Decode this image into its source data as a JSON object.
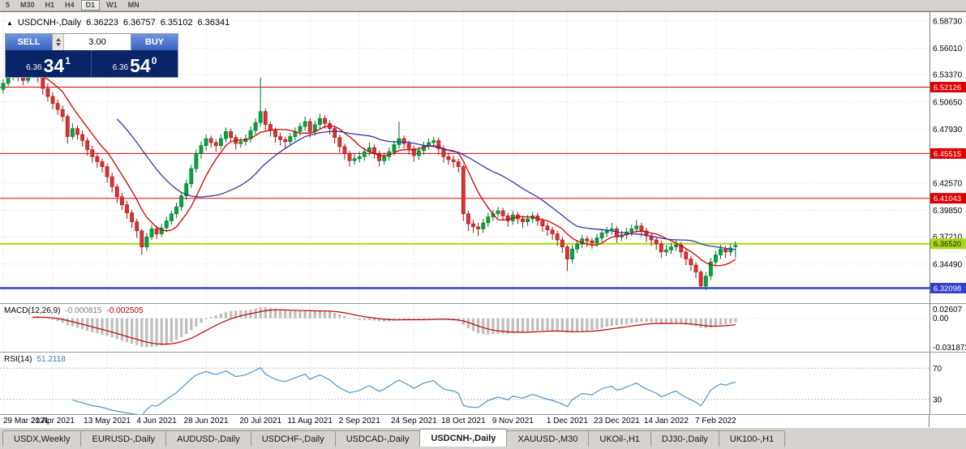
{
  "toolbar": {
    "timeframes": [
      "5",
      "M30",
      "H1",
      "H4",
      "D1",
      "W1",
      "MN"
    ],
    "active": "D1"
  },
  "symbol_info": {
    "toggle": "▲",
    "symbol": "USDCNH-,Daily",
    "open": "6.36223",
    "high": "6.36757",
    "low": "6.35102",
    "close": "6.36341"
  },
  "trade_panel": {
    "sell_label": "SELL",
    "buy_label": "BUY",
    "volume": "3.00",
    "sell_price": {
      "prefix": "6.36",
      "big": "34",
      "sup": "1"
    },
    "buy_price": {
      "prefix": "6.36",
      "big": "54",
      "sup": "0"
    }
  },
  "chart_data": {
    "type": "candlestick",
    "title": "USDCNH-,Daily",
    "ylim": [
      6.306,
      6.596
    ],
    "grid": true,
    "y_axis_labels": [
      "6.58730",
      "6.56010",
      "6.53370",
      "6.50650",
      "6.47930",
      "6.42570",
      "6.39850",
      "6.37210",
      "6.34490"
    ],
    "x_labels": [
      "29 Mar 2021",
      "21 Apr 2021",
      "13 May 2021",
      "4 Jun 2021",
      "28 Jun 2021",
      "20 Jul 2021",
      "11 Aug 2021",
      "2 Sep 2021",
      "24 Sep 2021",
      "18 Oct 2021",
      "9 Nov 2021",
      "1 Dec 2021",
      "23 Dec 2021",
      "14 Jan 2022",
      "7 Feb 2022"
    ],
    "x_label_indices": [
      0,
      10,
      21,
      31,
      41,
      52,
      62,
      72,
      83,
      93,
      103,
      114,
      124,
      134,
      144
    ],
    "hlines": [
      {
        "value": 6.52126,
        "label": "6.52126",
        "color": "#DD0000",
        "fg": "#FFFFFF",
        "width": 1
      },
      {
        "value": 6.45515,
        "label": "6.45515",
        "color": "#DD0000",
        "fg": "#FFFFFF",
        "width": 1
      },
      {
        "value": 6.41043,
        "label": "6.41043",
        "color": "#DD0000",
        "fg": "#FFFFFF",
        "width": 1
      },
      {
        "value": 6.3652,
        "label": "6.36520",
        "color": "#A8D918",
        "fg": "#1A1A00",
        "width": 2
      },
      {
        "value": 6.32098,
        "label": "6.32098",
        "color": "#3340CC",
        "fg": "#FFFFFF",
        "width": 2.5
      }
    ],
    "colors": {
      "up": "#00A83C",
      "up_stroke": "#00722A",
      "down": "#E03030",
      "down_stroke": "#A31212",
      "ma_fast": "#D40000",
      "ma_slow": "#3038A8",
      "macd_bar": "#C0C0C0",
      "macd_signal": "#C00000",
      "rsi": "#4E94CE"
    },
    "indicators": {
      "macd": {
        "label": "MACD(12,26,9)",
        "hist_value": "-0.000815",
        "signal_value": "-0.002505",
        "axis": [
          "0.02607",
          "0.00",
          "-0.031872"
        ]
      },
      "rsi": {
        "label": "RSI(14)",
        "value": "51.2118",
        "levels": [
          70,
          30
        ],
        "ylim": [
          10,
          90
        ]
      }
    },
    "candles": [
      [
        6.519,
        6.529,
        6.515,
        6.525
      ],
      [
        6.525,
        6.536,
        6.522,
        6.531
      ],
      [
        6.531,
        6.541,
        6.528,
        6.536
      ],
      [
        6.536,
        6.539,
        6.527,
        6.532
      ],
      [
        6.532,
        6.537,
        6.523,
        6.528
      ],
      [
        6.528,
        6.538,
        6.525,
        6.534
      ],
      [
        6.534,
        6.549,
        6.531,
        6.54
      ],
      [
        6.54,
        6.543,
        6.526,
        6.531
      ],
      [
        6.531,
        6.534,
        6.514,
        6.52
      ],
      [
        6.52,
        6.525,
        6.507,
        6.512
      ],
      [
        6.512,
        6.516,
        6.499,
        6.505
      ],
      [
        6.505,
        6.509,
        6.494,
        6.499
      ],
      [
        6.499,
        6.503,
        6.487,
        6.492
      ],
      [
        6.492,
        6.494,
        6.465,
        6.472
      ],
      [
        6.472,
        6.485,
        6.469,
        6.48
      ],
      [
        6.48,
        6.483,
        6.469,
        6.474
      ],
      [
        6.474,
        6.478,
        6.462,
        6.468
      ],
      [
        6.468,
        6.471,
        6.453,
        6.459
      ],
      [
        6.459,
        6.463,
        6.446,
        6.452
      ],
      [
        6.452,
        6.456,
        6.441,
        6.447
      ],
      [
        6.447,
        6.45,
        6.436,
        6.442
      ],
      [
        6.442,
        6.445,
        6.426,
        6.432
      ],
      [
        6.432,
        6.436,
        6.416,
        6.422
      ],
      [
        6.422,
        6.425,
        6.406,
        6.412
      ],
      [
        6.412,
        6.416,
        6.399,
        6.404
      ],
      [
        6.404,
        6.408,
        6.39,
        6.396
      ],
      [
        6.396,
        6.399,
        6.381,
        6.387
      ],
      [
        6.387,
        6.39,
        6.371,
        6.378
      ],
      [
        6.378,
        6.38,
        6.354,
        6.362
      ],
      [
        6.362,
        6.376,
        6.358,
        6.372
      ],
      [
        6.372,
        6.384,
        6.369,
        6.38
      ],
      [
        6.38,
        6.383,
        6.37,
        6.375
      ],
      [
        6.375,
        6.385,
        6.372,
        6.381
      ],
      [
        6.381,
        6.392,
        6.377,
        6.388
      ],
      [
        6.388,
        6.398,
        6.384,
        6.395
      ],
      [
        6.395,
        6.406,
        6.391,
        6.402
      ],
      [
        6.402,
        6.417,
        6.398,
        6.413
      ],
      [
        6.413,
        6.429,
        6.409,
        6.425
      ],
      [
        6.425,
        6.444,
        6.421,
        6.44
      ],
      [
        6.44,
        6.459,
        6.436,
        6.455
      ],
      [
        6.455,
        6.467,
        6.45,
        6.463
      ],
      [
        6.463,
        6.474,
        6.458,
        6.47
      ],
      [
        6.47,
        6.473,
        6.461,
        6.466
      ],
      [
        6.466,
        6.469,
        6.457,
        6.463
      ],
      [
        6.463,
        6.474,
        6.459,
        6.47
      ],
      [
        6.47,
        6.481,
        6.466,
        6.477
      ],
      [
        6.477,
        6.48,
        6.466,
        6.471
      ],
      [
        6.471,
        6.474,
        6.459,
        6.465
      ],
      [
        6.465,
        6.471,
        6.461,
        6.467
      ],
      [
        6.467,
        6.474,
        6.463,
        6.47
      ],
      [
        6.47,
        6.482,
        6.466,
        6.478
      ],
      [
        6.478,
        6.49,
        6.474,
        6.486
      ],
      [
        6.486,
        6.531,
        6.482,
        6.497
      ],
      [
        6.497,
        6.5,
        6.478,
        6.484
      ],
      [
        6.484,
        6.487,
        6.472,
        6.478
      ],
      [
        6.478,
        6.481,
        6.466,
        6.472
      ],
      [
        6.472,
        6.476,
        6.463,
        6.469
      ],
      [
        6.469,
        6.472,
        6.46,
        6.467
      ],
      [
        6.467,
        6.476,
        6.463,
        6.472
      ],
      [
        6.472,
        6.481,
        6.468,
        6.477
      ],
      [
        6.477,
        6.486,
        6.473,
        6.482
      ],
      [
        6.482,
        6.492,
        6.478,
        6.487
      ],
      [
        6.487,
        6.49,
        6.471,
        6.477
      ],
      [
        6.477,
        6.488,
        6.473,
        6.484
      ],
      [
        6.484,
        6.495,
        6.48,
        6.49
      ],
      [
        6.49,
        6.493,
        6.48,
        6.485
      ],
      [
        6.485,
        6.488,
        6.474,
        6.48
      ],
      [
        6.48,
        6.483,
        6.465,
        6.471
      ],
      [
        6.471,
        6.474,
        6.456,
        6.462
      ],
      [
        6.462,
        6.465,
        6.449,
        6.455
      ],
      [
        6.455,
        6.458,
        6.442,
        6.448
      ],
      [
        6.448,
        6.455,
        6.444,
        6.45
      ],
      [
        6.45,
        6.457,
        6.446,
        6.452
      ],
      [
        6.452,
        6.461,
        6.448,
        6.457
      ],
      [
        6.457,
        6.466,
        6.453,
        6.461
      ],
      [
        6.461,
        6.464,
        6.45,
        6.455
      ],
      [
        6.455,
        6.458,
        6.442,
        6.448
      ],
      [
        6.448,
        6.456,
        6.444,
        6.452
      ],
      [
        6.452,
        6.461,
        6.448,
        6.457
      ],
      [
        6.457,
        6.468,
        6.453,
        6.464
      ],
      [
        6.464,
        6.487,
        6.46,
        6.47
      ],
      [
        6.47,
        6.473,
        6.46,
        6.465
      ],
      [
        6.465,
        6.468,
        6.454,
        6.46
      ],
      [
        6.46,
        6.463,
        6.447,
        6.453
      ],
      [
        6.453,
        6.462,
        6.449,
        6.458
      ],
      [
        6.458,
        6.467,
        6.454,
        6.463
      ],
      [
        6.463,
        6.47,
        6.459,
        6.466
      ],
      [
        6.466,
        6.472,
        6.462,
        6.468
      ],
      [
        6.468,
        6.471,
        6.454,
        6.46
      ],
      [
        6.46,
        6.463,
        6.446,
        6.452
      ],
      [
        6.452,
        6.456,
        6.444,
        6.449
      ],
      [
        6.449,
        6.453,
        6.441,
        6.447
      ],
      [
        6.447,
        6.45,
        6.436,
        6.442
      ],
      [
        6.442,
        6.444,
        6.388,
        6.395
      ],
      [
        6.395,
        6.398,
        6.378,
        6.385
      ],
      [
        6.385,
        6.389,
        6.376,
        6.382
      ],
      [
        6.382,
        6.386,
        6.373,
        6.38
      ],
      [
        6.38,
        6.39,
        6.376,
        6.386
      ],
      [
        6.386,
        6.396,
        6.382,
        6.392
      ],
      [
        6.392,
        6.399,
        6.388,
        6.395
      ],
      [
        6.395,
        6.402,
        6.391,
        6.398
      ],
      [
        6.398,
        6.401,
        6.388,
        6.393
      ],
      [
        6.393,
        6.396,
        6.382,
        6.388
      ],
      [
        6.388,
        6.398,
        6.384,
        6.394
      ],
      [
        6.394,
        6.397,
        6.385,
        6.39
      ],
      [
        6.39,
        6.393,
        6.381,
        6.387
      ],
      [
        6.387,
        6.394,
        6.383,
        6.39
      ],
      [
        6.39,
        6.397,
        6.386,
        6.393
      ],
      [
        6.393,
        6.396,
        6.383,
        6.388
      ],
      [
        6.388,
        6.391,
        6.377,
        6.383
      ],
      [
        6.383,
        6.386,
        6.373,
        6.379
      ],
      [
        6.379,
        6.382,
        6.369,
        6.375
      ],
      [
        6.375,
        6.378,
        6.363,
        6.369
      ],
      [
        6.369,
        6.372,
        6.356,
        6.362
      ],
      [
        6.362,
        6.364,
        6.338,
        6.35
      ],
      [
        6.35,
        6.364,
        6.346,
        6.36
      ],
      [
        6.36,
        6.369,
        6.356,
        6.365
      ],
      [
        6.365,
        6.374,
        6.361,
        6.37
      ],
      [
        6.37,
        6.373,
        6.362,
        6.368
      ],
      [
        6.368,
        6.371,
        6.36,
        6.366
      ],
      [
        6.366,
        6.375,
        6.362,
        6.371
      ],
      [
        6.371,
        6.38,
        6.367,
        6.376
      ],
      [
        6.376,
        6.382,
        6.372,
        6.378
      ],
      [
        6.378,
        6.386,
        6.374,
        6.38
      ],
      [
        6.38,
        6.383,
        6.366,
        6.372
      ],
      [
        6.372,
        6.378,
        6.368,
        6.374
      ],
      [
        6.374,
        6.381,
        6.37,
        6.377
      ],
      [
        6.377,
        6.384,
        6.373,
        6.38
      ],
      [
        6.38,
        6.389,
        6.376,
        6.383
      ],
      [
        6.383,
        6.386,
        6.372,
        6.378
      ],
      [
        6.378,
        6.381,
        6.367,
        6.373
      ],
      [
        6.373,
        6.376,
        6.363,
        6.369
      ],
      [
        6.369,
        6.372,
        6.359,
        6.365
      ],
      [
        6.365,
        6.368,
        6.351,
        6.357
      ],
      [
        6.357,
        6.364,
        6.353,
        6.359
      ],
      [
        6.359,
        6.366,
        6.355,
        6.362
      ],
      [
        6.362,
        6.369,
        6.358,
        6.364
      ],
      [
        6.364,
        6.367,
        6.351,
        6.357
      ],
      [
        6.357,
        6.36,
        6.344,
        6.35
      ],
      [
        6.35,
        6.353,
        6.338,
        6.344
      ],
      [
        6.344,
        6.347,
        6.331,
        6.337
      ],
      [
        6.337,
        6.339,
        6.3205,
        6.323
      ],
      [
        6.323,
        6.337,
        6.319,
        6.333
      ],
      [
        6.333,
        6.351,
        6.329,
        6.347
      ],
      [
        6.347,
        6.358,
        6.343,
        6.354
      ],
      [
        6.354,
        6.364,
        6.35,
        6.36
      ],
      [
        6.36,
        6.363,
        6.351,
        6.357
      ],
      [
        6.357,
        6.365,
        6.353,
        6.361
      ],
      [
        6.3622,
        6.3676,
        6.351,
        6.3634
      ]
    ]
  },
  "tabs": [
    {
      "label": "USDX,Weekly",
      "active": false
    },
    {
      "label": "EURUSD-,Daily",
      "active": false
    },
    {
      "label": "AUDUSD-,Daily",
      "active": false
    },
    {
      "label": "USDCHF-,Daily",
      "active": false
    },
    {
      "label": "USDCAD-,Daily",
      "active": false
    },
    {
      "label": "USDCNH-,Daily",
      "active": true
    },
    {
      "label": "XAUUSD-,M30",
      "active": false
    },
    {
      "label": "UKOil-,H1",
      "active": false
    },
    {
      "label": "DJ30-,Daily",
      "active": false
    },
    {
      "label": "UK100-,H1",
      "active": false
    }
  ]
}
